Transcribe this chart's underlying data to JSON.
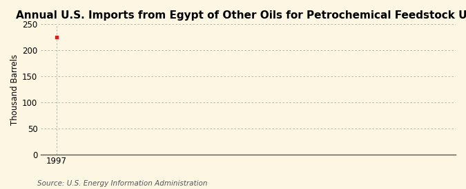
{
  "title": "Annual U.S. Imports from Egypt of Other Oils for Petrochemical Feedstock Use",
  "ylabel": "Thousand Barrels",
  "source": "Source: U.S. Energy Information Administration",
  "x_data": [
    1997
  ],
  "y_data": [
    225
  ],
  "marker_color": "#cc2222",
  "marker_style": "s",
  "marker_size": 3,
  "xlim": [
    1996.4,
    2012
  ],
  "ylim": [
    0,
    250
  ],
  "yticks": [
    0,
    50,
    100,
    150,
    200,
    250
  ],
  "xticks": [
    1997
  ],
  "background_color": "#fdf6e3",
  "plot_bg_color": "#fdf6e3",
  "grid_color": "#aaaaaa",
  "title_fontsize": 11,
  "label_fontsize": 8.5,
  "source_fontsize": 7.5,
  "tick_fontsize": 8.5
}
